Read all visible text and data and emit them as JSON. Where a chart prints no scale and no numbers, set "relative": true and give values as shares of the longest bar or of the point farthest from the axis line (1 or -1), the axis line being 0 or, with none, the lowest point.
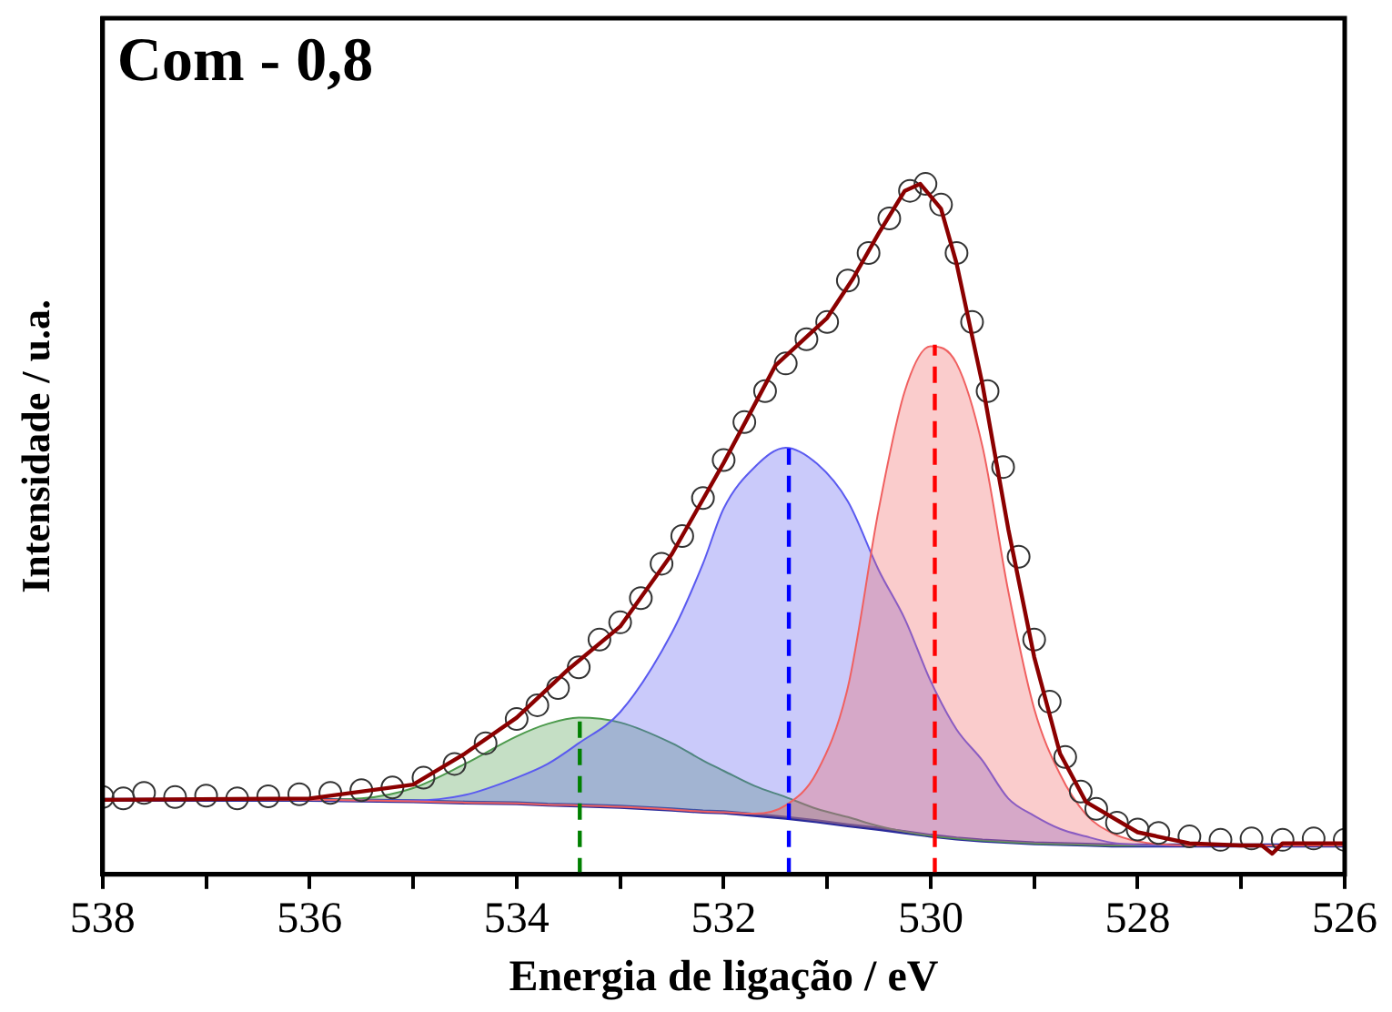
{
  "chart_data": {
    "type": "line",
    "title": "Com - 0,8",
    "xlabel": "Energia de ligação / eV",
    "ylabel": "Intensidade / u.a.",
    "relative": true,
    "xlim": [
      538,
      526
    ],
    "xticks": [
      538,
      {
        "value": 537,
        "label": null
      },
      536,
      {
        "value": 535,
        "label": null
      },
      534,
      {
        "value": 533,
        "label": null
      },
      532,
      {
        "value": 531,
        "label": null
      },
      530,
      {
        "value": 529,
        "label": null
      },
      528,
      {
        "value": 527,
        "label": null
      },
      526
    ],
    "grid": false,
    "legend": false,
    "x": [
      538,
      536,
      535.5,
      535,
      534.5,
      534,
      533.7,
      533.4,
      533,
      532.5,
      532.2,
      532,
      531.7,
      531.4,
      531.1,
      530.8,
      530.5,
      530.25,
      530,
      529.75,
      529.5,
      529.25,
      529,
      528.75,
      528.5,
      528.25,
      528,
      527.5,
      526
    ],
    "series": [
      {
        "type": "line",
        "color": "#2a2a9a",
        "line_style": "solid",
        "marker": "none",
        "values": [
          0.108,
          0.108,
          0.107,
          0.106,
          0.104,
          0.103,
          0.101,
          0.1,
          0.098,
          0.094,
          0.091,
          0.09,
          0.086,
          0.082,
          0.077,
          0.071,
          0.066,
          0.061,
          0.056,
          0.052,
          0.049,
          0.047,
          0.045,
          0.044,
          0.043,
          0.042,
          0.042,
          0.042,
          0.042
        ]
      },
      {
        "type": "area",
        "color": "#4c9a4c",
        "marker": "none",
        "values": [
          0.108,
          0.108,
          0.11,
          0.125,
          0.16,
          0.2,
          0.218,
          0.227,
          0.22,
          0.19,
          0.165,
          0.15,
          0.128,
          0.112,
          0.095,
          0.083,
          0.07,
          0.062,
          0.056,
          0.052,
          0.049,
          0.047,
          0.045,
          0.044,
          0.043,
          0.042,
          0.042,
          0.042,
          0.042
        ]
      },
      {
        "type": "area",
        "color": "#5a5af0",
        "marker": "none",
        "values": [
          0.108,
          0.108,
          0.107,
          0.107,
          0.115,
          0.14,
          0.16,
          0.19,
          0.235,
          0.35,
          0.45,
          0.53,
          0.59,
          0.618,
          0.595,
          0.54,
          0.44,
          0.37,
          0.28,
          0.21,
          0.165,
          0.11,
          0.085,
          0.066,
          0.055,
          0.046,
          0.043,
          0.042,
          0.042
        ]
      },
      {
        "type": "area",
        "color": "#f06060",
        "marker": "none",
        "values": [
          0.108,
          0.108,
          0.107,
          0.106,
          0.104,
          0.103,
          0.101,
          0.1,
          0.098,
          0.094,
          0.091,
          0.09,
          0.088,
          0.1,
          0.148,
          0.271,
          0.53,
          0.7,
          0.765,
          0.74,
          0.62,
          0.41,
          0.24,
          0.145,
          0.087,
          0.06,
          0.048,
          0.042,
          0.042
        ]
      },
      {
        "type": "line",
        "color": "#008000",
        "line_style": "dashed",
        "marker": "none",
        "x": [
          533.39,
          533.39
        ],
        "values": [
          0,
          0.227
        ]
      },
      {
        "type": "line",
        "color": "#0000ff",
        "line_style": "dashed",
        "marker": "none",
        "x": [
          531.37,
          531.37
        ],
        "values": [
          0,
          0.618
        ]
      },
      {
        "type": "line",
        "color": "#ff0000",
        "line_style": "dashed",
        "marker": "none",
        "x": [
          529.96,
          529.96
        ],
        "values": [
          0,
          0.767
        ]
      },
      {
        "type": "scatter",
        "color": "#333333",
        "marker": "circle",
        "x": [
          538,
          537.8,
          537.6,
          537.3,
          537,
          536.7,
          536.4,
          536.1,
          535.8,
          535.5,
          535.2,
          534.9,
          534.6,
          534.3,
          534,
          533.8,
          533.6,
          533.4,
          533.2,
          533,
          532.8,
          532.6,
          532.4,
          532.2,
          532,
          531.8,
          531.6,
          531.4,
          531.2,
          531,
          530.8,
          530.6,
          530.4,
          530.2,
          530.05,
          529.9,
          529.75,
          529.6,
          529.45,
          529.3,
          529.15,
          529,
          528.85,
          528.7,
          528.55,
          528.4,
          528.2,
          528,
          527.8,
          527.5,
          527.2,
          526.9,
          526.6,
          526.3,
          526
        ],
        "values": [
          0.112,
          0.11,
          0.118,
          0.112,
          0.114,
          0.11,
          0.113,
          0.116,
          0.118,
          0.122,
          0.126,
          0.14,
          0.16,
          0.19,
          0.225,
          0.245,
          0.27,
          0.3,
          0.34,
          0.365,
          0.4,
          0.45,
          0.49,
          0.545,
          0.6,
          0.655,
          0.7,
          0.74,
          0.775,
          0.8,
          0.86,
          0.9,
          0.95,
          0.99,
          1,
          0.97,
          0.9,
          0.8,
          0.7,
          0.59,
          0.46,
          0.34,
          0.25,
          0.17,
          0.12,
          0.095,
          0.075,
          0.065,
          0.06,
          0.055,
          0.05,
          0.052,
          0.05,
          0.052,
          0.05
        ]
      },
      {
        "type": "line",
        "color": "#8b0000",
        "line_style": "solid",
        "marker": "none",
        "x": [
          538,
          536,
          535,
          534.5,
          534,
          533.5,
          533,
          532.5,
          532,
          531.5,
          531,
          530.75,
          530.5,
          530.25,
          530.1,
          529.9,
          529.75,
          529.5,
          529.25,
          529,
          528.75,
          528.5,
          528,
          527.5,
          527,
          526.8,
          526.7,
          526.6,
          526
        ],
        "values": [
          0.108,
          0.11,
          0.13,
          0.175,
          0.227,
          0.297,
          0.359,
          0.464,
          0.596,
          0.737,
          0.806,
          0.863,
          0.929,
          0.99,
          1,
          0.964,
          0.885,
          0.71,
          0.5,
          0.315,
          0.175,
          0.105,
          0.061,
          0.045,
          0.042,
          0.042,
          0.03,
          0.045,
          0.045
        ]
      }
    ]
  }
}
